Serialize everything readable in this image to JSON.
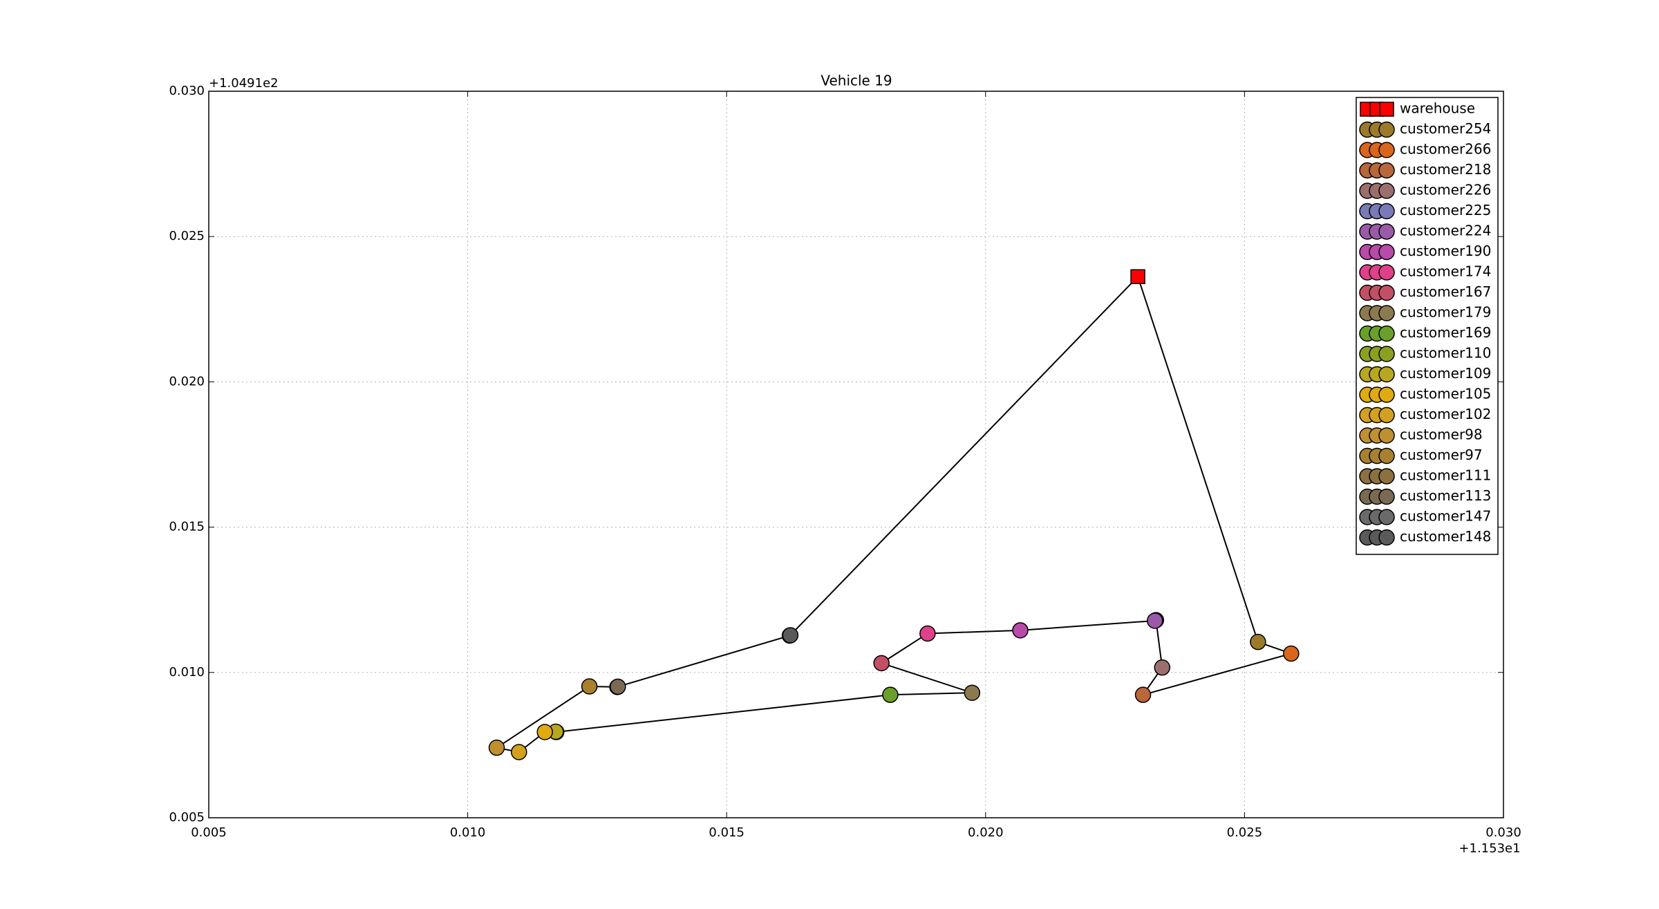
{
  "chart_data": {
    "type": "scatter",
    "title": "Vehicle 19",
    "x_offset": "+1.153e1",
    "y_offset": "+1.0491e2",
    "xlim": [
      0.005,
      0.03
    ],
    "ylim": [
      0.005,
      0.03
    ],
    "xticks": [
      0.005,
      {
        "value": 0.01,
        "label": "0.010"
      },
      0.015,
      {
        "value": 0.02,
        "label": "0.020"
      },
      0.025,
      {
        "value": 0.03,
        "label": "0.030"
      }
    ],
    "yticks": [
      {
        "value": 0.005,
        "label": "0.005"
      },
      {
        "value": 0.01,
        "label": "0.010"
      },
      0.015,
      {
        "value": 0.02,
        "label": "0.020"
      },
      0.025,
      {
        "value": 0.03,
        "label": "0.030"
      }
    ],
    "grid": true,
    "legend": "upper right",
    "route_color": "#000000",
    "series": [
      {
        "name": "warehouse",
        "color": "#ff0000",
        "marker": "square",
        "x": [
          0.02294
        ],
        "y": [
          0.02362
        ]
      },
      {
        "name": "customer254",
        "color": "#9c7a2a",
        "marker": "circle",
        "x": [
          0.02526
        ],
        "y": [
          0.01105
        ]
      },
      {
        "name": "customer266",
        "color": "#d9661a",
        "marker": "circle",
        "x": [
          0.0259
        ],
        "y": [
          0.01065
        ]
      },
      {
        "name": "customer218",
        "color": "#b8663a",
        "marker": "circle",
        "x": [
          0.02304
        ],
        "y": [
          0.00923
        ]
      },
      {
        "name": "customer226",
        "color": "#9c6f6f",
        "marker": "circle",
        "x": [
          0.02341
        ],
        "y": [
          0.01017
        ]
      },
      {
        "name": "customer225",
        "color": "#7a7ab8",
        "marker": "circle",
        "x": [
          0.02329
        ],
        "y": [
          0.0118
        ]
      },
      {
        "name": "customer224",
        "color": "#9a5aa8",
        "marker": "circle",
        "x": [
          0.02327
        ],
        "y": [
          0.01178
        ]
      },
      {
        "name": "customer190",
        "color": "#b84aa8",
        "marker": "circle",
        "x": [
          0.02067
        ],
        "y": [
          0.01145
        ]
      },
      {
        "name": "customer174",
        "color": "#e0408a",
        "marker": "circle",
        "x": [
          0.01888
        ],
        "y": [
          0.01134
        ]
      },
      {
        "name": "customer167",
        "color": "#c24f66",
        "marker": "circle",
        "x": [
          0.01799
        ],
        "y": [
          0.01032
        ]
      },
      {
        "name": "customer179",
        "color": "#8c7a4f",
        "marker": "circle",
        "x": [
          0.01974
        ],
        "y": [
          0.0093
        ]
      },
      {
        "name": "customer169",
        "color": "#6aa02a",
        "marker": "circle",
        "x": [
          0.01816
        ],
        "y": [
          0.00923
        ]
      },
      {
        "name": "customer110",
        "color": "#8ca020",
        "marker": "circle",
        "x": [
          0.01171
        ],
        "y": [
          0.00795
        ]
      },
      {
        "name": "customer109",
        "color": "#b8a820",
        "marker": "circle",
        "x": [
          0.0117
        ],
        "y": [
          0.00796
        ]
      },
      {
        "name": "customer105",
        "color": "#e0aa10",
        "marker": "circle",
        "x": [
          0.01149
        ],
        "y": [
          0.00795
        ]
      },
      {
        "name": "customer102",
        "color": "#d4a020",
        "marker": "circle",
        "x": [
          0.01099
        ],
        "y": [
          0.00726
        ]
      },
      {
        "name": "customer98",
        "color": "#c09030",
        "marker": "circle",
        "x": [
          0.01056
        ],
        "y": [
          0.00741
        ]
      },
      {
        "name": "customer97",
        "color": "#a88030",
        "marker": "circle",
        "x": [
          0.01235
        ],
        "y": [
          0.00952
        ]
      },
      {
        "name": "customer111",
        "color": "#8c7040",
        "marker": "circle",
        "x": [
          0.01289
        ],
        "y": [
          0.0095
        ]
      },
      {
        "name": "customer113",
        "color": "#7a6a52",
        "marker": "circle",
        "x": [
          0.0129
        ],
        "y": [
          0.00951
        ]
      },
      {
        "name": "customer147",
        "color": "#6a6a6a",
        "marker": "circle",
        "x": [
          0.01622
        ],
        "y": [
          0.01127
        ]
      },
      {
        "name": "customer148",
        "color": "#5a5a5a",
        "marker": "circle",
        "x": [
          0.01623
        ],
        "y": [
          0.01128
        ]
      }
    ]
  }
}
